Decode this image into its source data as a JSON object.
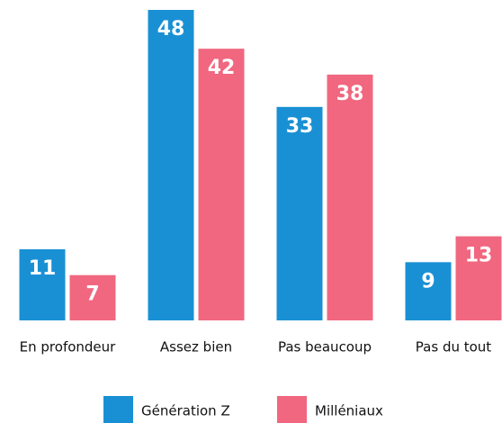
{
  "chart_data": {
    "type": "bar",
    "categories": [
      "En profondeur",
      "Assez bien",
      "Pas beaucoup",
      "Pas du tout"
    ],
    "series": [
      {
        "name": "Génération Z",
        "color": "#1a90d4",
        "values": [
          11,
          48,
          33,
          9
        ]
      },
      {
        "name": "Milléniaux",
        "color": "#f0677f",
        "values": [
          7,
          42,
          38,
          13
        ]
      }
    ]
  }
}
